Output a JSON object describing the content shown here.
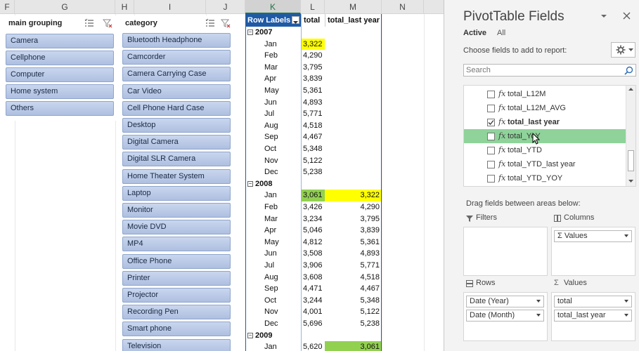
{
  "columns": [
    "F",
    "G",
    "H",
    "I",
    "J",
    "K",
    "L",
    "M",
    "N"
  ],
  "slicers": {
    "main_grouping": {
      "title": "main grouping",
      "items": [
        "Camera",
        "Cellphone",
        "Computer",
        "Home system",
        "Others"
      ]
    },
    "category": {
      "title": "category",
      "items": [
        "Bluetooth Headphone",
        "Camcorder",
        "Camera Carrying Case",
        "Car Video",
        "Cell Phone Hard Case",
        "Desktop",
        "Digital Camera",
        "Digital SLR Camera",
        "Home Theater System",
        "Laptop",
        "Monitor",
        "Movie DVD",
        "MP4",
        "Office Phone",
        "Printer",
        "Projector",
        "Recording Pen",
        "Smart phone",
        "Television"
      ]
    }
  },
  "pivot": {
    "row_labels": "Row Labels",
    "col_total": "total",
    "col_last": "total_last year",
    "rows": [
      {
        "type": "year",
        "label": "2007",
        "total": "",
        "last": ""
      },
      {
        "type": "month",
        "label": "Jan",
        "total": "3,322",
        "last": "",
        "hl_total": "yellow"
      },
      {
        "type": "month",
        "label": "Feb",
        "total": "4,290",
        "last": ""
      },
      {
        "type": "month",
        "label": "Mar",
        "total": "3,795",
        "last": ""
      },
      {
        "type": "month",
        "label": "Apr",
        "total": "3,839",
        "last": ""
      },
      {
        "type": "month",
        "label": "May",
        "total": "5,361",
        "last": ""
      },
      {
        "type": "month",
        "label": "Jun",
        "total": "4,893",
        "last": ""
      },
      {
        "type": "month",
        "label": "Jul",
        "total": "5,771",
        "last": ""
      },
      {
        "type": "month",
        "label": "Aug",
        "total": "4,518",
        "last": ""
      },
      {
        "type": "month",
        "label": "Sep",
        "total": "4,467",
        "last": ""
      },
      {
        "type": "month",
        "label": "Oct",
        "total": "5,348",
        "last": ""
      },
      {
        "type": "month",
        "label": "Nov",
        "total": "5,122",
        "last": ""
      },
      {
        "type": "month",
        "label": "Dec",
        "total": "5,238",
        "last": ""
      },
      {
        "type": "year",
        "label": "2008",
        "total": "",
        "last": ""
      },
      {
        "type": "month",
        "label": "Jan",
        "total": "3,061",
        "last": "3,322",
        "hl_total": "green",
        "hl_last": "yellow"
      },
      {
        "type": "month",
        "label": "Feb",
        "total": "3,426",
        "last": "4,290"
      },
      {
        "type": "month",
        "label": "Mar",
        "total": "3,234",
        "last": "3,795"
      },
      {
        "type": "month",
        "label": "Apr",
        "total": "5,046",
        "last": "3,839"
      },
      {
        "type": "month",
        "label": "May",
        "total": "4,812",
        "last": "5,361"
      },
      {
        "type": "month",
        "label": "Jun",
        "total": "3,508",
        "last": "4,893"
      },
      {
        "type": "month",
        "label": "Jul",
        "total": "3,906",
        "last": "5,771"
      },
      {
        "type": "month",
        "label": "Aug",
        "total": "3,608",
        "last": "4,518"
      },
      {
        "type": "month",
        "label": "Sep",
        "total": "4,471",
        "last": "4,467"
      },
      {
        "type": "month",
        "label": "Oct",
        "total": "3,244",
        "last": "5,348"
      },
      {
        "type": "month",
        "label": "Nov",
        "total": "4,001",
        "last": "5,122"
      },
      {
        "type": "month",
        "label": "Dec",
        "total": "5,696",
        "last": "5,238"
      },
      {
        "type": "year",
        "label": "2009",
        "total": "",
        "last": ""
      },
      {
        "type": "month",
        "label": "Jan",
        "total": "5,620",
        "last": "3,061",
        "hl_last": "green"
      }
    ]
  },
  "panel": {
    "title": "PivotTable Fields",
    "tab_active": "Active",
    "tab_all": "All",
    "choose": "Choose fields to add to report:",
    "search_placeholder": "Search",
    "fields": [
      {
        "name": "total_L12M",
        "checked": false,
        "bold": false
      },
      {
        "name": "total_L12M_AVG",
        "checked": false,
        "bold": false
      },
      {
        "name": "total_last year",
        "checked": true,
        "bold": true
      },
      {
        "name": "total_YoY",
        "checked": false,
        "bold": false,
        "highlight": true
      },
      {
        "name": "total_YTD",
        "checked": false,
        "bold": false
      },
      {
        "name": "total_YTD_last year",
        "checked": false,
        "bold": false
      },
      {
        "name": "total_YTD_YOY",
        "checked": false,
        "bold": false
      }
    ],
    "drag_label": "Drag fields between areas below:",
    "filters_label": "Filters",
    "columns_label": "Columns",
    "rows_label": "Rows",
    "values_label": "Values",
    "columns_items": [
      "Σ Values"
    ],
    "rows_items": [
      "Date (Year)",
      "Date (Month)"
    ],
    "values_items": [
      "total",
      "total_last year"
    ]
  },
  "colors": {
    "yellow": "#ffff00",
    "green": "#92d050",
    "accent": "#217346",
    "pivot_header": "#1f5aa6"
  }
}
